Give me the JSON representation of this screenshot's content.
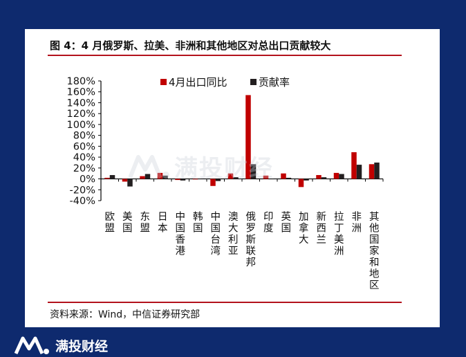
{
  "title": "图 4：4 月俄罗斯、拉美、非洲和其他地区对总出口贡献较大",
  "source": "资料来源：Wind，中信证券研究部",
  "brand": {
    "name": "满投财经",
    "watermark": "满投财经"
  },
  "colors": {
    "background": "#0e2a6e",
    "accent": "#b3121c",
    "series_red": "#c00000",
    "series_dark": "#231f20"
  },
  "chart_data": {
    "type": "bar",
    "categories": [
      "欧盟",
      "美国",
      "东盟",
      "日本",
      "中国香港",
      "韩国",
      "中国台湾",
      "澳大利亚",
      "俄罗斯联邦",
      "印度",
      "英国",
      "加拿大",
      "新西兰",
      "拉丁美洲",
      "非洲",
      "其他国家和地区"
    ],
    "series": [
      {
        "name": "4月出口同比",
        "color": "#c00000",
        "values": [
          2,
          -5,
          5,
          11,
          -2,
          -1,
          -13,
          10,
          154,
          6,
          10,
          -15,
          7,
          11,
          49,
          27
        ]
      },
      {
        "name": "贡献率",
        "color": "#231f20",
        "values": [
          7,
          -14,
          9,
          6,
          -3,
          0,
          -4,
          3,
          27,
          0,
          2,
          -3,
          3,
          9,
          26,
          30
        ]
      }
    ],
    "yticks": [
      "180%",
      "160%",
      "140%",
      "120%",
      "100%",
      "80%",
      "60%",
      "40%",
      "20%",
      "0%",
      "-20%",
      "-40%"
    ],
    "ylim": [
      -40,
      180
    ],
    "legend_position": "top"
  }
}
